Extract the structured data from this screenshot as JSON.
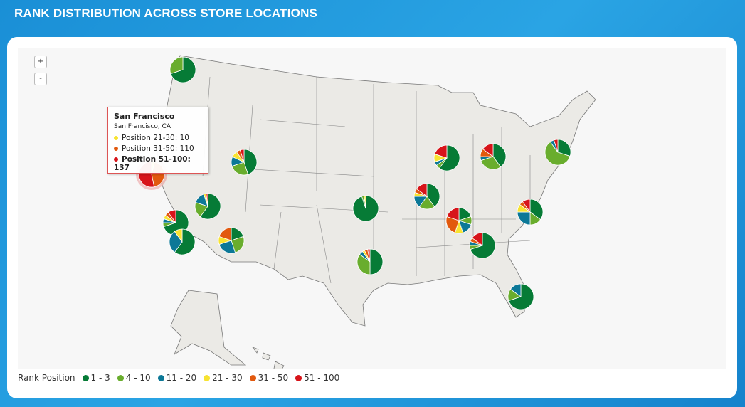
{
  "title": "RANK DISTRIBUTION ACROSS STORE LOCATIONS",
  "zoom": {
    "in": "+",
    "out": "-"
  },
  "tooltip": {
    "title": "San Francisco",
    "subtitle": "San Francisco, CA",
    "rows": [
      {
        "label": "Position 21-30: 10",
        "color": "#f7e331"
      },
      {
        "label": "Position 31-50: 110",
        "color": "#e2590e"
      },
      {
        "label": "Position 51-100: 137",
        "color": "#d7141a",
        "bold": true
      }
    ]
  },
  "legend": {
    "title": "Rank Position",
    "items": [
      {
        "label": "1 - 3",
        "color": "#067b36"
      },
      {
        "label": "4 - 10",
        "color": "#69ad2d"
      },
      {
        "label": "11 - 20",
        "color": "#0c7897"
      },
      {
        "label": "21 - 30",
        "color": "#f7e331"
      },
      {
        "label": "31 - 50",
        "color": "#e2590e"
      },
      {
        "label": "51 - 100",
        "color": "#d7141a"
      }
    ]
  },
  "chart_data": {
    "type": "pie-map",
    "categories": [
      "1 - 3",
      "4 - 10",
      "11 - 20",
      "21 - 30",
      "31 - 50",
      "51 - 100"
    ],
    "locations": [
      {
        "values": [
          70,
          30,
          0,
          0,
          0,
          0
        ]
      },
      {
        "name": "San Francisco",
        "values": [
          0,
          0,
          0,
          10,
          110,
          137
        ],
        "highlighted": true
      },
      {
        "values": [
          45,
          25,
          12,
          8,
          5,
          5
        ]
      },
      {
        "values": [
          60,
          20,
          15,
          3,
          0,
          2
        ]
      },
      {
        "values": [
          70,
          5,
          5,
          5,
          5,
          10
        ]
      },
      {
        "values": [
          60,
          0,
          30,
          10,
          0,
          0
        ]
      },
      {
        "values": [
          20,
          25,
          25,
          10,
          20,
          0
        ]
      },
      {
        "values": [
          95,
          3,
          0,
          2,
          0,
          0
        ]
      },
      {
        "values": [
          50,
          35,
          5,
          3,
          4,
          3
        ]
      },
      {
        "values": [
          40,
          20,
          15,
          5,
          5,
          15
        ]
      },
      {
        "values": [
          60,
          5,
          5,
          10,
          0,
          20
        ]
      },
      {
        "values": [
          20,
          10,
          15,
          10,
          25,
          20
        ]
      },
      {
        "values": [
          70,
          5,
          5,
          0,
          5,
          15
        ]
      },
      {
        "values": [
          40,
          30,
          5,
          0,
          10,
          15
        ]
      },
      {
        "values": [
          35,
          15,
          25,
          10,
          5,
          10
        ]
      },
      {
        "values": [
          30,
          60,
          5,
          0,
          0,
          5
        ]
      },
      {
        "values": [
          70,
          15,
          15,
          0,
          0,
          0
        ]
      }
    ]
  }
}
